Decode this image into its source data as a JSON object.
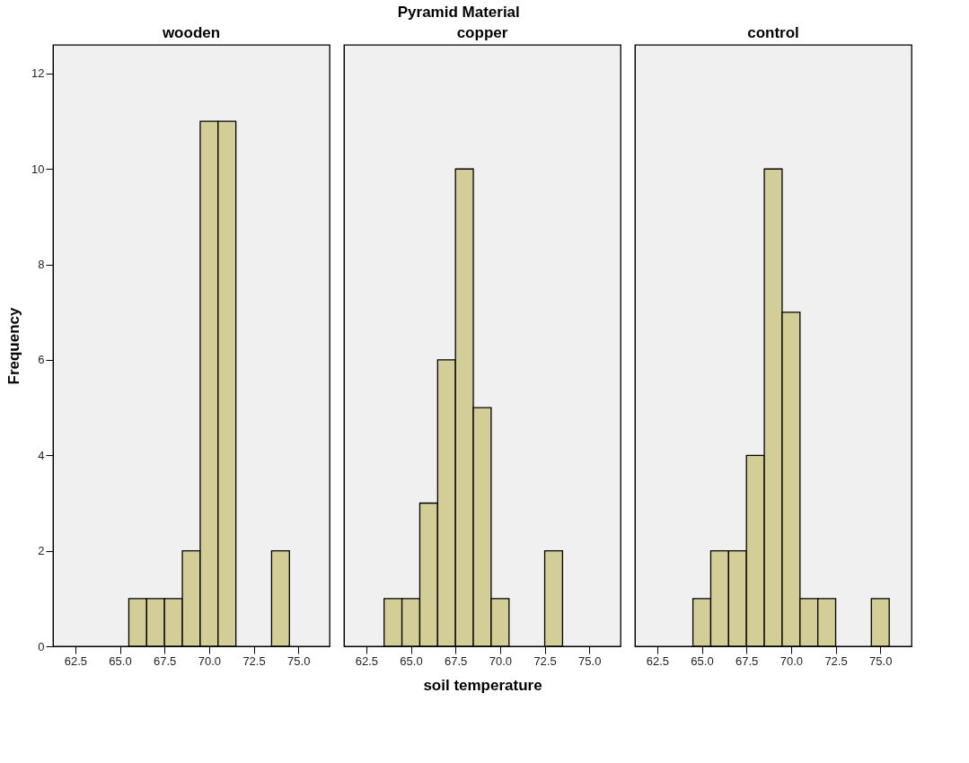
{
  "chart_data": [
    {
      "type": "histogram",
      "title": "wooden",
      "annotations": [
        "Pyramid Material"
      ],
      "ylabel": "Frequency",
      "color": "#d3ce97",
      "bins": [
        65.5,
        66.5,
        67.5,
        68.5,
        69.5,
        70.5,
        71.5,
        72.5,
        73.5,
        74.5
      ],
      "values": [
        1,
        1,
        1,
        2,
        11,
        11,
        0,
        0,
        2
      ],
      "xlim": [
        61.25,
        76.75
      ],
      "xticks": [
        {
          "value": 62.5,
          "label": "62.5"
        },
        {
          "value": 65,
          "label": "65.0"
        },
        {
          "value": 67.5,
          "label": "67.5"
        },
        {
          "value": 70,
          "label": "70.0"
        },
        {
          "value": 72.5,
          "label": "72.5"
        },
        {
          "value": 75,
          "label": "75.0"
        }
      ],
      "ylim": [
        0,
        12.6
      ],
      "yticks": [
        0,
        2,
        4,
        6,
        8,
        10,
        12
      ]
    },
    {
      "type": "histogram",
      "title": "copper",
      "xlabel": "soil temperature",
      "color": "#d3ce97",
      "bins": [
        63.5,
        64.5,
        65.5,
        66.5,
        67.5,
        68.5,
        69.5,
        70.5,
        71.5,
        72.5,
        73.5
      ],
      "values": [
        1,
        1,
        3,
        6,
        10,
        5,
        1,
        0,
        0,
        2
      ],
      "xlim": [
        61.25,
        76.75
      ],
      "xticks": [
        {
          "value": 62.5,
          "label": "62.5"
        },
        {
          "value": 65,
          "label": "65.0"
        },
        {
          "value": 67.5,
          "label": "67.5"
        },
        {
          "value": 70,
          "label": "70.0"
        },
        {
          "value": 72.5,
          "label": "72.5"
        },
        {
          "value": 75,
          "label": "75.0"
        }
      ],
      "ylim": [
        0,
        12.6
      ],
      "yticks": [
        0,
        2,
        4,
        6,
        8,
        10,
        12
      ],
      "tick_labels": "x"
    },
    {
      "type": "histogram",
      "title": "control",
      "color": "#d3ce97",
      "bins": [
        64.5,
        65.5,
        66.5,
        67.5,
        68.5,
        69.5,
        70.5,
        71.5,
        72.5,
        73.5,
        74.5,
        75.5
      ],
      "values": [
        1,
        2,
        2,
        4,
        10,
        7,
        1,
        1,
        0,
        0,
        1
      ],
      "xlim": [
        61.25,
        76.75
      ],
      "xticks": [
        {
          "value": 62.5,
          "label": "62.5"
        },
        {
          "value": 65,
          "label": "65.0"
        },
        {
          "value": 67.5,
          "label": "67.5"
        },
        {
          "value": 70,
          "label": "70.0"
        },
        {
          "value": 72.5,
          "label": "72.5"
        },
        {
          "value": 75,
          "label": "75.0"
        }
      ],
      "ylim": [
        0,
        12.6
      ],
      "yticks": [
        0,
        2,
        4,
        6,
        8,
        10,
        12
      ],
      "tick_labels": "x"
    }
  ]
}
